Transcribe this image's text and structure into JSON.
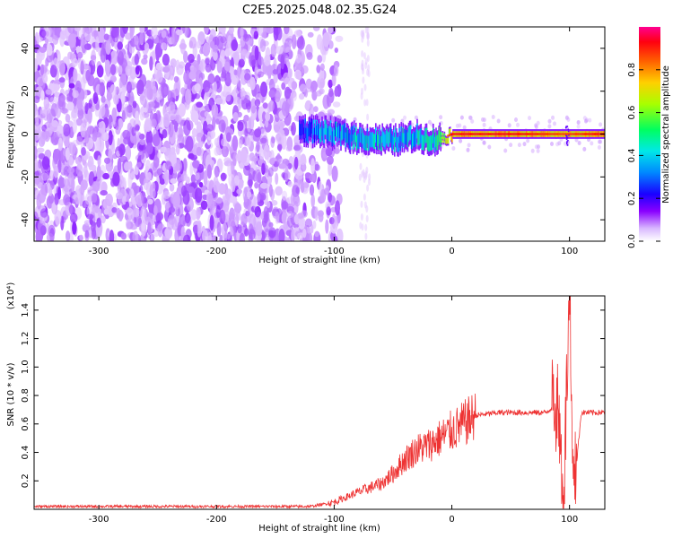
{
  "title": "C2E5.2025.048.02.35.G24",
  "chart_data": [
    {
      "type": "heatmap",
      "xlabel": "Height of straight line (km)",
      "ylabel": "Frequency (Hz)",
      "xlim": [
        -355,
        130
      ],
      "ylim": [
        -50,
        50
      ],
      "x_ticks": [
        -300,
        -200,
        -100,
        0,
        100
      ],
      "y_ticks": [
        -40,
        -20,
        0,
        20,
        40
      ],
      "colorbar": {
        "label": "Normalized spectral amplitude",
        "range": [
          0,
          1
        ],
        "ticks": [
          0.0,
          0.2,
          0.4,
          0.6,
          0.8
        ],
        "tick_labels": [
          "0.0",
          "0.2",
          "0.4",
          "0.6",
          "0.8"
        ],
        "colors": [
          "#ffffff",
          "#cc99ff",
          "#7a00ff",
          "#0000ff",
          "#00c8ff",
          "#00ff60",
          "#c8ff00",
          "#ffb000",
          "#ff0000",
          "#ff0080"
        ]
      },
      "noise_region": {
        "x": [
          -355,
          -105
        ],
        "freq_range": [
          -50,
          50
        ],
        "amplitude": 0.2
      },
      "signal_band": [
        {
          "x": -130,
          "freq": 2,
          "amplitude": 0.35
        },
        {
          "x": -110,
          "freq": 1,
          "amplitude": 0.45
        },
        {
          "x": -80,
          "freq": -2,
          "amplitude": 0.5
        },
        {
          "x": -50,
          "freq": -3,
          "amplitude": 0.5
        },
        {
          "x": -30,
          "freq": -1,
          "amplitude": 0.5
        },
        {
          "x": -15,
          "freq": -3,
          "amplitude": 0.55
        },
        {
          "x": 0,
          "freq": 0,
          "amplitude": 0.9
        },
        {
          "x": 50,
          "freq": 0,
          "amplitude": 0.9
        },
        {
          "x": 95,
          "freq": 0,
          "amplitude": 0.85
        },
        {
          "x": 130,
          "freq": 0,
          "amplitude": 0.9
        }
      ]
    },
    {
      "type": "line",
      "xlabel": "Height of straight line (km)",
      "ylabel": "SNR (10 * v/v)",
      "y_multiplier": "(x10⁴)",
      "xlim": [
        -355,
        130
      ],
      "ylim": [
        0,
        1.5
      ],
      "x_ticks": [
        -300,
        -200,
        -100,
        0,
        100
      ],
      "y_ticks": [
        0.2,
        0.4,
        0.6,
        0.8,
        1.0,
        1.2,
        1.4
      ],
      "y_tick_labels": [
        "0.2",
        "0.4",
        "0.6",
        "0.8",
        "1.0",
        "1.2",
        "1.4"
      ],
      "color": "#ee3333",
      "x": [
        -355,
        -300,
        -200,
        -120,
        -100,
        -80,
        -60,
        -50,
        -40,
        -30,
        -20,
        -10,
        0,
        10,
        20,
        40,
        60,
        80,
        90,
        95,
        100,
        103,
        110,
        130
      ],
      "y": [
        0.02,
        0.02,
        0.02,
        0.02,
        0.05,
        0.12,
        0.18,
        0.25,
        0.35,
        0.42,
        0.45,
        0.5,
        0.55,
        0.6,
        0.66,
        0.68,
        0.68,
        0.68,
        0.75,
        0.1,
        1.5,
        0.05,
        0.68,
        0.68
      ]
    }
  ]
}
